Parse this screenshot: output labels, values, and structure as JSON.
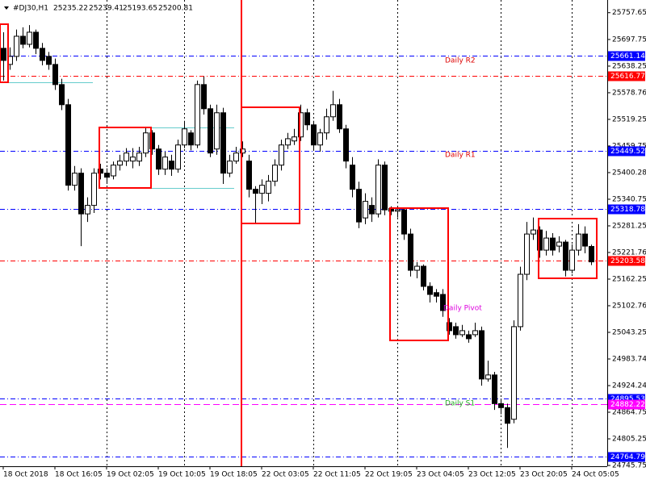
{
  "chart_data": {
    "type": "candlestick",
    "symbol": "#DJ30,H1",
    "categories": [
      "18 Oct 2018",
      null,
      null,
      null,
      null,
      null,
      null,
      null,
      "18 Oct 16:05",
      null,
      null,
      null,
      null,
      null,
      null,
      null,
      "19 Oct 02:05",
      null,
      null,
      null,
      null,
      null,
      null,
      null,
      "19 Oct 10:05",
      null,
      null,
      null,
      null,
      null,
      null,
      null,
      "19 Oct 18:05",
      null,
      null,
      null,
      null,
      null,
      null,
      null,
      "22 Oct 03:05",
      null,
      null,
      null,
      null,
      null,
      null,
      null,
      "22 Oct 11:05",
      null,
      null,
      null,
      null,
      null,
      null,
      null,
      "22 Oct 19:05",
      null,
      null,
      null,
      null,
      null,
      null,
      null,
      "23 Oct 04:05",
      null,
      null,
      null,
      null,
      null,
      null,
      null,
      "23 Oct 12:05",
      null,
      null,
      null,
      null,
      null,
      null,
      null,
      "23 Oct 20:05",
      null,
      null,
      null,
      null,
      null,
      null,
      null,
      "24 Oct 05:05",
      null,
      null,
      null
    ],
    "open": [
      25678,
      25642,
      25660,
      25705,
      25687,
      25714,
      25678,
      25660,
      25642,
      25597,
      25552,
      25372,
      25399,
      25308,
      25327,
      25408,
      25399,
      25393,
      25417,
      25426,
      25426,
      25426,
      25444,
      25489,
      25453,
      25408,
      25426,
      25408,
      25462,
      25489,
      25462,
      25597,
      25543,
      25453,
      25534,
      25399,
      25426,
      25444,
      25426,
      25363,
      25354,
      25354,
      25381,
      25417,
      25462,
      25471,
      25480,
      25534,
      25507,
      25462,
      25489,
      25525,
      25552,
      25498,
      25417,
      25363,
      25299,
      25327,
      25308,
      25417,
      25320,
      25314,
      25317,
      25263,
      25182,
      25191,
      25146,
      25132,
      25128,
      25065,
      25056,
      25038,
      25038,
      25038,
      25047,
      24939,
      24948,
      24884,
      24875,
      24849,
      25056,
      25173,
      25263,
      25272,
      25227,
      25254,
      25236,
      25245,
      25182,
      25227,
      25263,
      25235.22
    ],
    "high": [
      25714,
      25680,
      25720,
      25725,
      25730,
      25720,
      25690,
      25670,
      25655,
      25610,
      25565,
      25415,
      25410,
      25345,
      25410,
      25420,
      25410,
      25425,
      25440,
      25455,
      25455,
      25458,
      25500,
      25495,
      25462,
      25447,
      25440,
      25474,
      25516,
      25495,
      25606,
      25615,
      25552,
      25552,
      25545,
      25440,
      25458,
      25470,
      25440,
      25370,
      25385,
      25395,
      25430,
      25474,
      25489,
      25498,
      25552,
      25543,
      25516,
      25498,
      25543,
      25583,
      25565,
      25507,
      25435,
      25380,
      25354,
      25345,
      25430,
      25425,
      25325,
      25322,
      25322,
      25275,
      25200,
      25195,
      25155,
      25140,
      25140,
      25075,
      25065,
      25060,
      25047,
      25065,
      25056,
      24980,
      24955,
      24895,
      24884,
      25070,
      25190,
      25290,
      25300,
      25280,
      25270,
      25265,
      25258,
      25250,
      25240,
      25285,
      25280,
      25239.41
    ],
    "low": [
      25606,
      25630,
      25650,
      25678,
      25680,
      25665,
      25640,
      25630,
      25585,
      25540,
      25360,
      25360,
      25236,
      25290,
      25310,
      25385,
      25375,
      25385,
      25405,
      25415,
      25410,
      25415,
      25435,
      25440,
      25395,
      25395,
      25393,
      25400,
      25455,
      25450,
      25455,
      25530,
      25435,
      25440,
      25375,
      25390,
      25420,
      25435,
      25345,
      25285,
      25330,
      25336,
      25370,
      25405,
      25453,
      25462,
      25471,
      25495,
      25450,
      25447,
      25474,
      25516,
      25489,
      25410,
      25345,
      25276,
      25285,
      25290,
      25300,
      25305,
      25305,
      25300,
      25250,
      25168,
      25164,
      25137,
      25110,
      25110,
      25078,
      25038,
      25029,
      25033,
      25020,
      25033,
      24924,
      24933,
      24870,
      24860,
      24785,
      24840,
      25047,
      25160,
      25250,
      25210,
      25215,
      25215,
      25222,
      25168,
      25175,
      25215,
      25220,
      25193.65
    ],
    "close": [
      25651,
      25660,
      25705,
      25687,
      25714,
      25678,
      25651,
      25642,
      25597,
      25552,
      25372,
      25399,
      25308,
      25327,
      25399,
      25399,
      25390,
      25417,
      25426,
      25444,
      25435,
      25444,
      25489,
      25453,
      25408,
      25435,
      25408,
      25462,
      25498,
      25462,
      25597,
      25543,
      25444,
      25534,
      25399,
      25426,
      25444,
      25453,
      25363,
      25354,
      25372,
      25381,
      25417,
      25462,
      25476,
      25480,
      25534,
      25507,
      25462,
      25489,
      25525,
      25552,
      25498,
      25426,
      25363,
      25290,
      25336,
      25308,
      25417,
      25317,
      25314,
      25317,
      25263,
      25182,
      25191,
      25146,
      25128,
      25124,
      25092,
      25047,
      25038,
      25047,
      25029,
      25047,
      24939,
      24948,
      24884,
      24875,
      24840,
      25056,
      25173,
      25263,
      25272,
      25227,
      25254,
      25227,
      25245,
      25182,
      25227,
      25263,
      25236,
      25200.81
    ],
    "ylim": [
      24744,
      25786
    ],
    "yticks": [
      25757.65,
      25697.75,
      25638.25,
      25578.76,
      25519.25,
      25459.75,
      25400.28,
      25340.75,
      25281.25,
      25221.76,
      25162.25,
      25102.76,
      25043.25,
      24983.74,
      24924.24,
      24864.75,
      24805.25,
      24745.75
    ],
    "levels": [
      {
        "value": 25661.14,
        "color": "#0000ff"
      },
      {
        "value": 25616.77,
        "color": "#ff0000"
      },
      {
        "value": 25449.52,
        "color": "#0000ff"
      },
      {
        "value": 25318.78,
        "color": "#0000ff"
      },
      {
        "value": 25203.58,
        "color": "#ff0000"
      },
      {
        "value": 24895.53,
        "color": "#0000ff"
      },
      {
        "value": 24882.22,
        "color": "#ff00ff"
      },
      {
        "value": 24764.79,
        "color": "#0000ff"
      }
    ],
    "annotations": [
      {
        "text": "Daily R2",
        "color": "#dd0000"
      },
      {
        "text": "Daily R1",
        "color": "#dd0000"
      },
      {
        "text": "Daily Pivot",
        "color": "#dd00dd"
      },
      {
        "text": "Daily S1",
        "color": "#22aa22"
      }
    ]
  }
}
